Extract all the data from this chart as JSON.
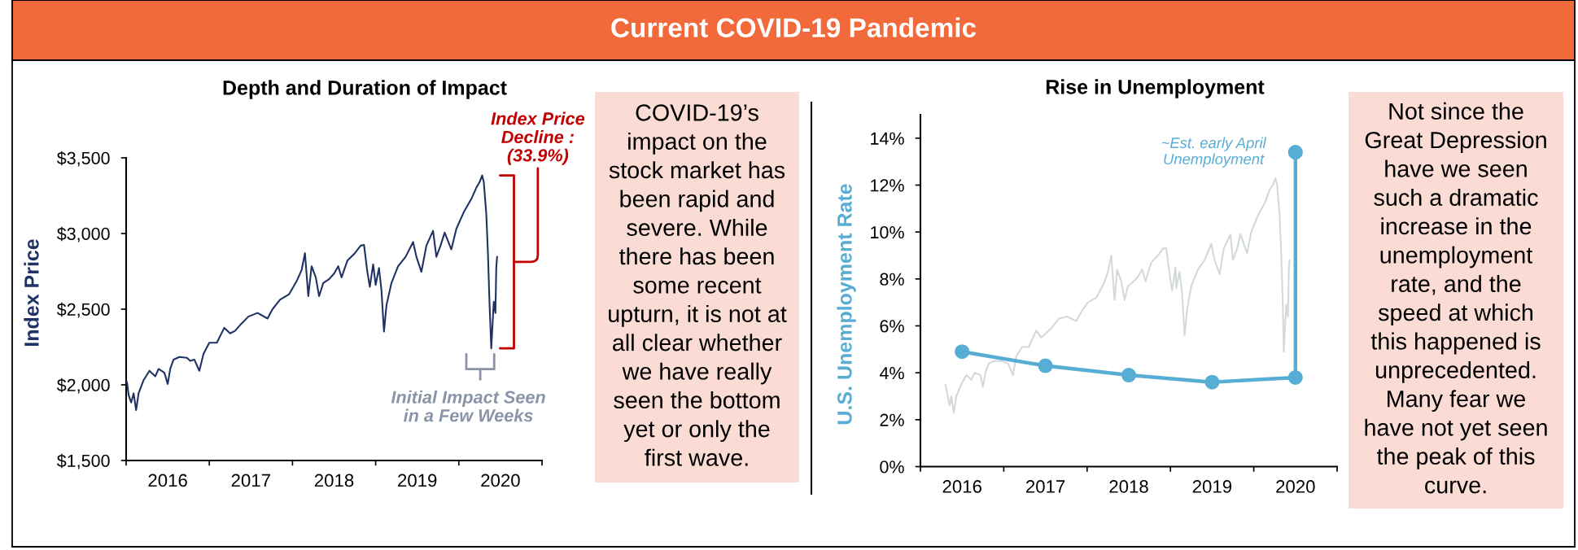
{
  "chart_data": [
    {
      "type": "other",
      "title": "Current COVID-19 Pandemic"
    },
    {
      "type": "line",
      "title": "Depth and Duration of Impact",
      "ylabel": "Index Price",
      "x": [
        2016.01,
        2016.03,
        2016.06,
        2016.09,
        2016.12,
        2016.15,
        2016.21,
        2016.28,
        2016.35,
        2016.39,
        2016.46,
        2016.5,
        2016.53,
        2016.57,
        2016.64,
        2016.73,
        2016.77,
        2016.82,
        2016.88,
        2016.93,
        2017.0,
        2017.09,
        2017.18,
        2017.25,
        2017.31,
        2017.38,
        2017.47,
        2017.58,
        2017.7,
        2017.76,
        2017.85,
        2017.96,
        2018.05,
        2018.11,
        2018.15,
        2018.19,
        2018.23,
        2018.28,
        2018.32,
        2018.37,
        2018.44,
        2018.5,
        2018.55,
        2018.59,
        2018.66,
        2018.75,
        2018.82,
        2018.86,
        2018.9,
        2018.93,
        2018.97,
        2019.0,
        2019.04,
        2019.07,
        2019.1,
        2019.13,
        2019.19,
        2019.27,
        2019.36,
        2019.45,
        2019.49,
        2019.55,
        2019.61,
        2019.69,
        2019.73,
        2019.78,
        2019.83,
        2019.91,
        2019.97,
        2020.06,
        2020.15,
        2020.21,
        2020.25,
        2020.28,
        2020.3,
        2020.33,
        2020.35,
        2020.37,
        2020.39,
        2020.42,
        2020.44,
        2020.45,
        2020.46
      ],
      "series": [
        {
          "color": "#1f3264",
          "values": [
            2018,
            1932,
            1883,
            1944,
            1833,
            1944,
            2031,
            2093,
            2056,
            2105,
            2080,
            2006,
            2105,
            2167,
            2184,
            2179,
            2159,
            2167,
            2093,
            2204,
            2278,
            2278,
            2377,
            2340,
            2357,
            2401,
            2451,
            2475,
            2438,
            2500,
            2562,
            2599,
            2685,
            2759,
            2870,
            2586,
            2784,
            2710,
            2586,
            2673,
            2698,
            2735,
            2784,
            2710,
            2821,
            2870,
            2920,
            2925,
            2747,
            2648,
            2796,
            2660,
            2772,
            2623,
            2352,
            2525,
            2673,
            2784,
            2846,
            2944,
            2846,
            2747,
            2920,
            3018,
            2846,
            2920,
            3006,
            2895,
            3031,
            3142,
            3228,
            3302,
            3340,
            3384,
            3340,
            3130,
            2870,
            2525,
            2241,
            2549,
            2475,
            2772,
            2846
          ]
        }
      ],
      "xlim": [
        2016,
        2021
      ],
      "xticks": [
        {
          "value": 2016,
          "label": null
        },
        {
          "value": 2016.5,
          "label": "2016"
        },
        {
          "value": 2017,
          "label": null
        },
        {
          "value": 2017.5,
          "label": "2017"
        },
        {
          "value": 2018,
          "label": null
        },
        {
          "value": 2018.5,
          "label": "2018"
        },
        {
          "value": 2019,
          "label": null
        },
        {
          "value": 2019.5,
          "label": "2019"
        },
        {
          "value": 2020,
          "label": null
        },
        {
          "value": 2020.5,
          "label": "2020"
        },
        {
          "value": 2021,
          "label": null
        }
      ],
      "ylim": [
        1500,
        3500
      ],
      "yticks": [
        {
          "value": 1500,
          "label": "$1,500"
        },
        {
          "value": 2000,
          "label": "$2,000"
        },
        {
          "value": 2500,
          "label": "$2,500"
        },
        {
          "value": 3000,
          "label": "$3,000"
        },
        {
          "value": 3500,
          "label": "$3,500"
        }
      ],
      "annotations": [
        "Index Price\nDecline :\n(33.9%)",
        "Initial Impact Seen\nin a Few Weeks"
      ]
    },
    {
      "type": "other",
      "annotations": [
        "COVID-19’s\nimpact on the\nstock market has\nbeen rapid and\nsevere. While\nthere has been\nsome recent\nupturn, it is not at\nall clear whether\nwe have really\nseen the bottom\nyet or only the\nfirst wave."
      ]
    },
    {
      "type": "line",
      "title": "Rise in Unemployment",
      "ylabel": "U.S. Unemployment Rate",
      "series": [
        {
          "color": "#d3d9db",
          "x": [
            2016.3,
            2016.35,
            2016.37,
            2016.4,
            2016.43,
            2016.49,
            2016.55,
            2016.61,
            2016.65,
            2016.72,
            2016.75,
            2016.78,
            2016.82,
            2016.89,
            2016.97,
            2017.05,
            2017.11,
            2017.15,
            2017.22,
            2017.3,
            2017.39,
            2017.45,
            2017.57,
            2017.66,
            2017.76,
            2017.87,
            2017.93,
            2018.01,
            2018.11,
            2018.2,
            2018.25,
            2018.29,
            2018.33,
            2018.36,
            2018.41,
            2018.45,
            2018.49,
            2018.56,
            2018.61,
            2018.66,
            2018.7,
            2018.77,
            2018.85,
            2018.91,
            2018.95,
            2018.99,
            2019.02,
            2019.06,
            2019.07,
            2019.11,
            2019.14,
            2019.17,
            2019.2,
            2019.25,
            2019.33,
            2019.41,
            2019.49,
            2019.53,
            2019.59,
            2019.64,
            2019.72,
            2019.75,
            2019.8,
            2019.84,
            2019.92,
            2019.97,
            2020.05,
            2020.14,
            2020.19,
            2020.23,
            2020.26,
            2020.28,
            2020.31,
            2020.33,
            2020.35,
            2020.36,
            2020.39,
            2020.41,
            2020.42,
            2020.43
          ],
          "values": [
            3.5,
            2.6,
            3.0,
            2.3,
            3.0,
            3.5,
            3.9,
            3.7,
            4.0,
            3.9,
            3.4,
            4.0,
            4.4,
            4.5,
            4.5,
            4.4,
            3.9,
            4.7,
            5.1,
            5.1,
            5.8,
            5.5,
            5.9,
            6.3,
            6.4,
            6.2,
            6.6,
            7.0,
            7.2,
            7.8,
            8.3,
            9.0,
            7.1,
            8.4,
            7.9,
            7.1,
            7.7,
            7.9,
            8.1,
            8.4,
            7.9,
            8.7,
            9.0,
            9.3,
            9.3,
            8.2,
            7.5,
            8.5,
            7.6,
            8.3,
            7.4,
            5.6,
            6.7,
            7.7,
            8.4,
            8.8,
            9.5,
            8.8,
            8.2,
            9.3,
            9.9,
            8.8,
            9.3,
            9.9,
            9.1,
            10.0,
            10.7,
            11.3,
            11.8,
            12.0,
            12.3,
            12.0,
            10.7,
            9.0,
            6.7,
            4.9,
            6.9,
            6.4,
            8.3,
            8.8
          ]
        },
        {
          "color": "#57add4",
          "marker": "circle",
          "x": [
            2016.5,
            2017.5,
            2018.5,
            2019.5,
            2020.5,
            2020.5
          ],
          "values": [
            4.9,
            4.3,
            3.9,
            3.6,
            3.8,
            13.4
          ]
        }
      ],
      "xlim": [
        2016,
        2021
      ],
      "xticks": [
        {
          "value": 2016,
          "label": null
        },
        {
          "value": 2016.5,
          "label": "2016"
        },
        {
          "value": 2017,
          "label": null
        },
        {
          "value": 2017.5,
          "label": "2017"
        },
        {
          "value": 2018,
          "label": null
        },
        {
          "value": 2018.5,
          "label": "2018"
        },
        {
          "value": 2019,
          "label": null
        },
        {
          "value": 2019.5,
          "label": "2019"
        },
        {
          "value": 2020,
          "label": null
        },
        {
          "value": 2020.5,
          "label": "2020"
        },
        {
          "value": 2021,
          "label": null
        }
      ],
      "ylim": [
        0,
        15
      ],
      "yticks": [
        {
          "value": 0,
          "label": "0%"
        },
        {
          "value": 2,
          "label": "2%"
        },
        {
          "value": 4,
          "label": "4%"
        },
        {
          "value": 6,
          "label": "6%"
        },
        {
          "value": 8,
          "label": "8%"
        },
        {
          "value": 10,
          "label": "10%"
        },
        {
          "value": 12,
          "label": "12%"
        },
        {
          "value": 14,
          "label": "14%"
        }
      ],
      "annotations": [
        {
          "text": "~Est. early April\nUnemployment",
          "x": 2020.5,
          "y": 13.4
        }
      ]
    },
    {
      "type": "other",
      "annotations": [
        "Not since the\nGreat Depression\nhave we seen\nsuch a dramatic\nincrease in the\nunemployment\nrate, and the\nspeed at which\nthis happened is\nunprecedented.\nMany fear we\nhave not yet seen\nthe peak of this\ncurve."
      ]
    }
  ]
}
